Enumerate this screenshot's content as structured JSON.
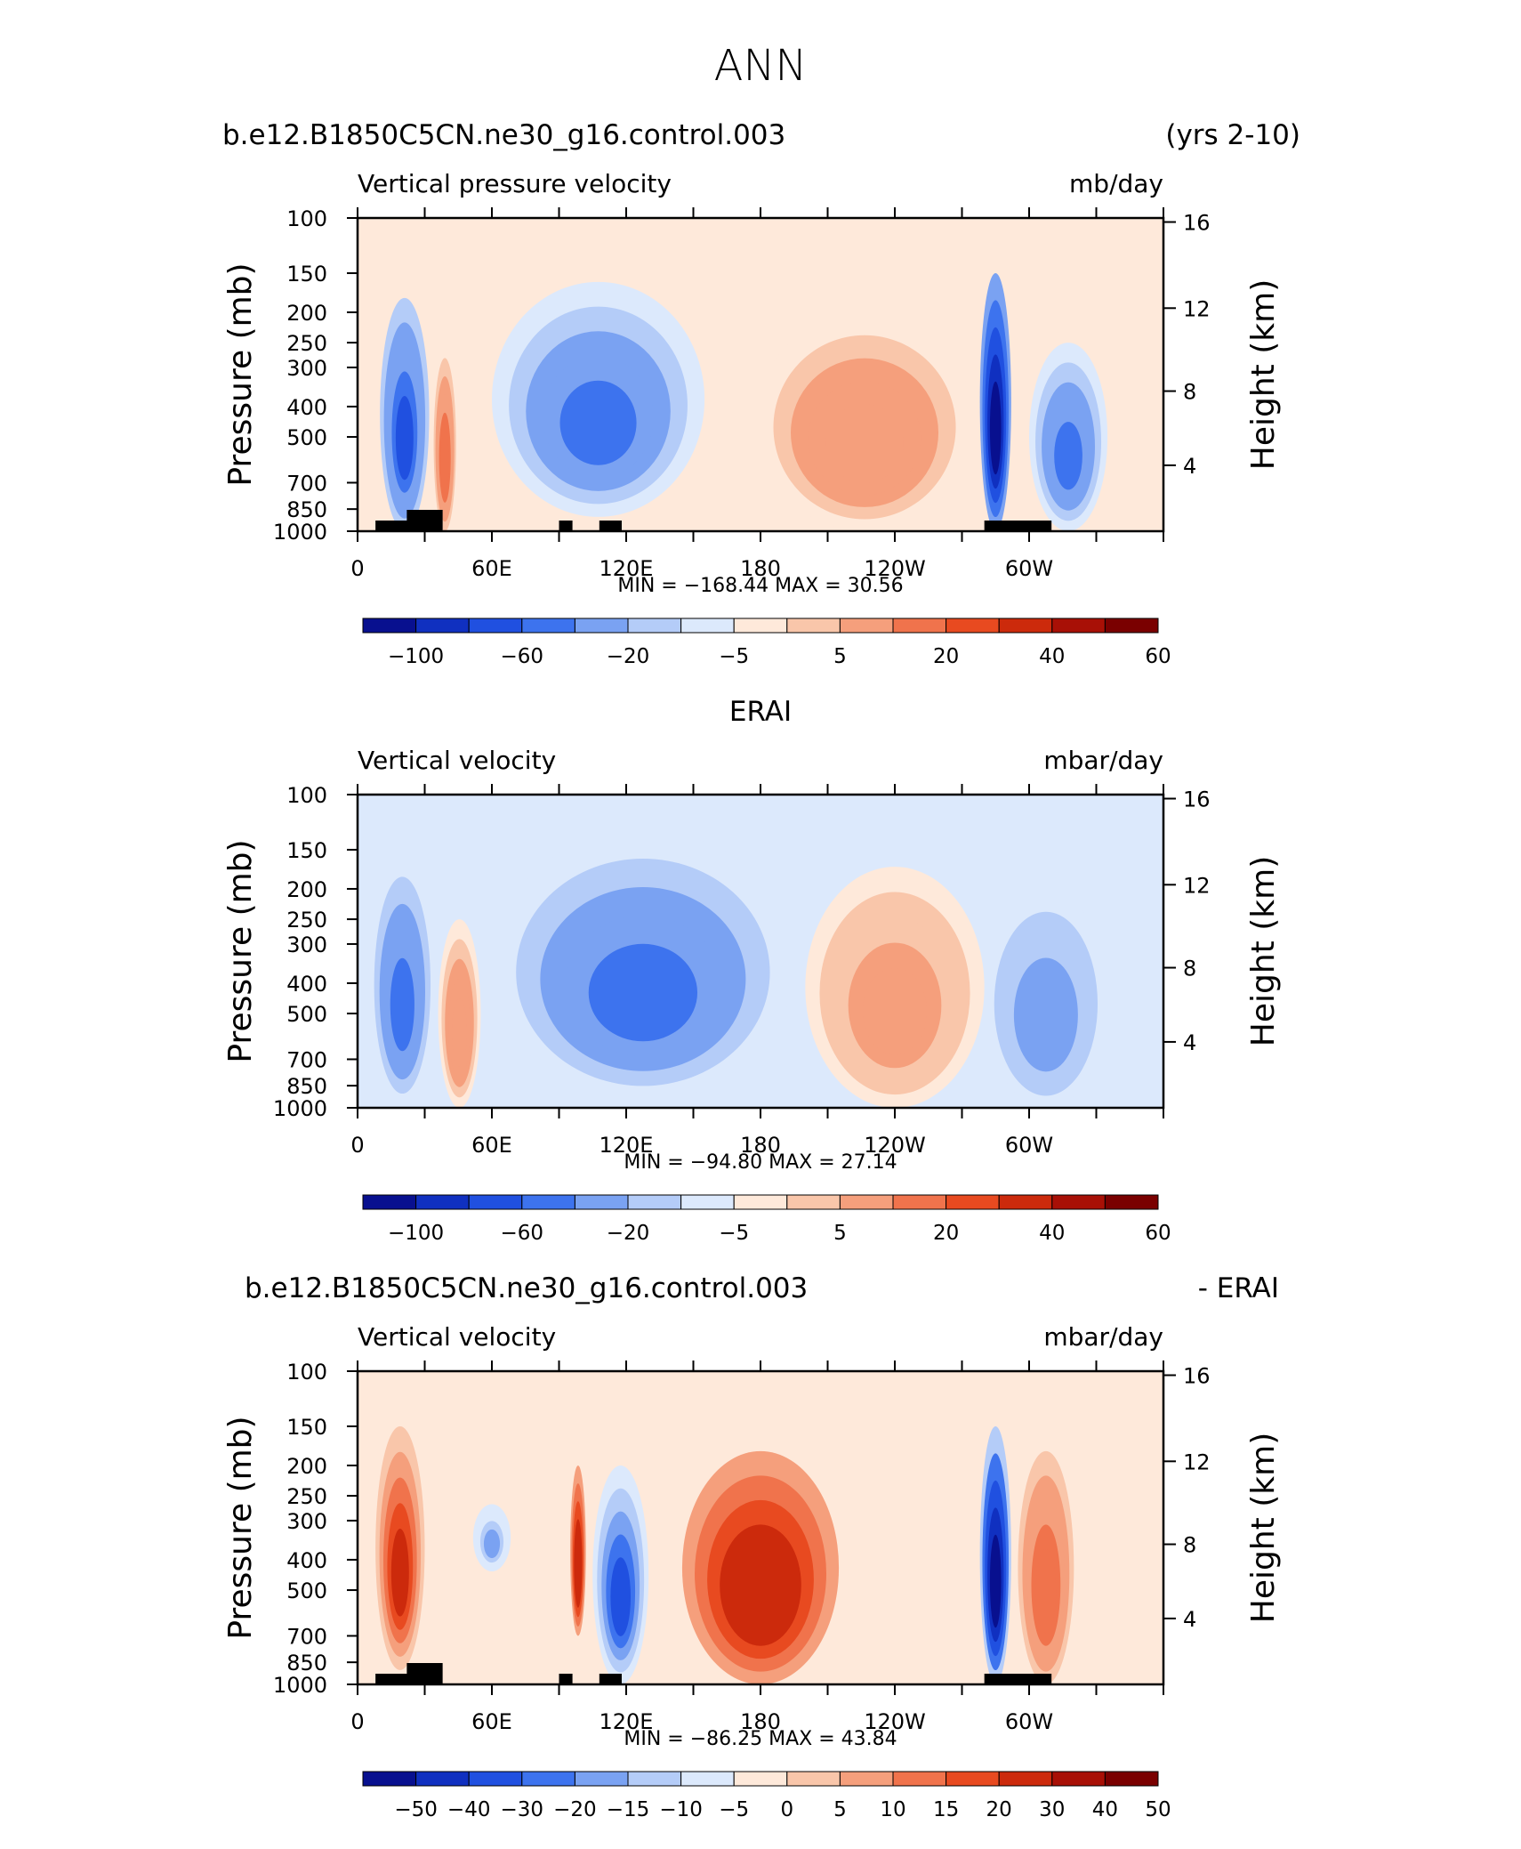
{
  "page_title": "ANN",
  "panels": [
    {
      "id": "model",
      "title_left": "b.e12.B1850C5CN.ne30_g16.control.003",
      "title_center": "",
      "title_right": "(yrs 2-10)",
      "variable": "Vertical pressure velocity",
      "units": "mb/day",
      "minmax": "MIN = −168.44   MAX =   30.56",
      "colorbar_labels": [
        "−100",
        "−60",
        "−20",
        "−5",
        "5",
        "20",
        "40",
        "60"
      ],
      "topo_bars": [
        [
          8,
          30
        ],
        [
          22,
          38
        ],
        [
          90,
          96
        ],
        [
          108,
          118
        ],
        [
          280,
          310
        ]
      ]
    },
    {
      "id": "obs",
      "title_left": "",
      "title_center": "ERAI",
      "title_right": "",
      "variable": "Vertical velocity",
      "units": "mbar/day",
      "minmax": "MIN = −94.80   MAX =   27.14",
      "colorbar_labels": [
        "−100",
        "−60",
        "−20",
        "−5",
        "5",
        "20",
        "40",
        "60"
      ],
      "topo_bars": []
    },
    {
      "id": "diff",
      "title_left": "b.e12.B1850C5CN.ne30_g16.control.003",
      "title_center": "",
      "title_right": "- ERAI",
      "variable": "Vertical velocity",
      "units": "mbar/day",
      "minmax": "MIN = −86.25   MAX =   43.84",
      "colorbar_labels": [
        "−50",
        "−40",
        "−30",
        "−20",
        "−15",
        "−10",
        "−5",
        "0",
        "5",
        "10",
        "15",
        "20",
        "30",
        "40",
        "50"
      ],
      "topo_bars": [
        [
          8,
          30
        ],
        [
          22,
          38
        ],
        [
          90,
          96
        ],
        [
          108,
          118
        ],
        [
          280,
          310
        ]
      ]
    }
  ],
  "axes": {
    "y_left_label": "Pressure (mb)",
    "y_right_label": "Height (km)",
    "y_left_ticks": [
      "100",
      "150",
      "200",
      "250",
      "300",
      "400",
      "500",
      "700",
      "850",
      "1000"
    ],
    "y_right_ticks": [
      "16",
      "12",
      "8",
      "4"
    ],
    "x_ticks": [
      "0",
      "60E",
      "120E",
      "180",
      "120W",
      "60W"
    ]
  },
  "colors": {
    "palette_main": [
      "#08108f",
      "#1030c0",
      "#2050e0",
      "#3d73ee",
      "#7aa2f2",
      "#b4ccf8",
      "#dce9fc",
      "#fee9da",
      "#f9c6aa",
      "#f59f7c",
      "#f0734c",
      "#e84a20",
      "#cc2a0c",
      "#a81006",
      "#7a0000"
    ],
    "palette_diff": [
      "#08108f",
      "#1030c0",
      "#2050e0",
      "#3d73ee",
      "#7aa2f2",
      "#b4ccf8",
      "#dce9fc",
      "#fee9da",
      "#f9c6aa",
      "#f59f7c",
      "#f0734c",
      "#e84a20",
      "#cc2a0c",
      "#a81006",
      "#7a0000"
    ],
    "topo": "#000000"
  },
  "chart_data": [
    {
      "type": "heatmap",
      "title": "b.e12.B1850C5CN.ne30_g16.control.003 (yrs 2-10)",
      "subtitle": "Vertical pressure velocity",
      "units": "mb/day",
      "x_range_deg": [
        0,
        360
      ],
      "x_ticks": [
        "0",
        "60E",
        "120E",
        "180",
        "120W",
        "60W"
      ],
      "y_pressure_mb": [
        100,
        150,
        200,
        250,
        300,
        400,
        500,
        700,
        850,
        1000
      ],
      "y_height_km": [
        16,
        12,
        8,
        4
      ],
      "min": -168.44,
      "max": 30.56,
      "contour_levels": [
        -100,
        -80,
        -60,
        -40,
        -20,
        -10,
        -5,
        5,
        10,
        20,
        30,
        40,
        50,
        60
      ],
      "features": [
        {
          "lon": [
            10,
            32
          ],
          "p": [
            180,
            1000
          ],
          "value": -60
        },
        {
          "lon": [
            34,
            44
          ],
          "p": [
            280,
            1000
          ],
          "value": 30
        },
        {
          "lon": [
            60,
            155
          ],
          "p": [
            160,
            900
          ],
          "value": -40
        },
        {
          "lon": [
            178,
            275
          ],
          "p": [
            200,
            1000
          ],
          "value": 20
        },
        {
          "lon": [
            278,
            292
          ],
          "p": [
            150,
            1000
          ],
          "value": -120
        },
        {
          "lon": [
            300,
            335
          ],
          "p": [
            250,
            1000
          ],
          "value": -40
        }
      ]
    },
    {
      "type": "heatmap",
      "title": "ERAI",
      "subtitle": "Vertical velocity",
      "units": "mbar/day",
      "x_range_deg": [
        0,
        360
      ],
      "x_ticks": [
        "0",
        "60E",
        "120E",
        "180",
        "120W",
        "60W"
      ],
      "y_pressure_mb": [
        100,
        150,
        200,
        250,
        300,
        400,
        500,
        700,
        850,
        1000
      ],
      "y_height_km": [
        16,
        12,
        8,
        4
      ],
      "min": -94.8,
      "max": 27.14,
      "contour_levels": [
        -100,
        -80,
        -60,
        -40,
        -20,
        -10,
        -5,
        5,
        10,
        20,
        30,
        40,
        50,
        60
      ],
      "features": [
        {
          "lon": [
            5,
            35
          ],
          "p": [
            150,
            1000
          ],
          "value": -40
        },
        {
          "lon": [
            36,
            55
          ],
          "p": [
            250,
            1000
          ],
          "value": 20
        },
        {
          "lon": [
            60,
            195
          ],
          "p": [
            130,
            950
          ],
          "value": -40
        },
        {
          "lon": [
            200,
            280
          ],
          "p": [
            170,
            1000
          ],
          "value": 15
        },
        {
          "lon": [
            280,
            335
          ],
          "p": [
            200,
            1000
          ],
          "value": -30
        }
      ]
    },
    {
      "type": "heatmap",
      "title": "b.e12.B1850C5CN.ne30_g16.control.003 - ERAI",
      "subtitle": "Vertical velocity",
      "units": "mbar/day",
      "x_range_deg": [
        0,
        360
      ],
      "x_ticks": [
        "0",
        "60E",
        "120E",
        "180",
        "120W",
        "60W"
      ],
      "y_pressure_mb": [
        100,
        150,
        200,
        250,
        300,
        400,
        500,
        700,
        850,
        1000
      ],
      "y_height_km": [
        16,
        12,
        8,
        4
      ],
      "min": -86.25,
      "max": 43.84,
      "contour_levels": [
        -50,
        -40,
        -30,
        -20,
        -15,
        -10,
        -5,
        0,
        5,
        10,
        15,
        20,
        30,
        40,
        50
      ],
      "features": [
        {
          "lon": [
            8,
            30
          ],
          "p": [
            150,
            900
          ],
          "value": 25
        },
        {
          "lon": [
            50,
            70
          ],
          "p": [
            250,
            450
          ],
          "value": -15
        },
        {
          "lon": [
            95,
            102
          ],
          "p": [
            200,
            700
          ],
          "value": 30
        },
        {
          "lon": [
            105,
            130
          ],
          "p": [
            200,
            1000
          ],
          "value": -30
        },
        {
          "lon": [
            145,
            215
          ],
          "p": [
            180,
            1000
          ],
          "value": 30
        },
        {
          "lon": [
            278,
            292
          ],
          "p": [
            150,
            1000
          ],
          "value": -50
        },
        {
          "lon": [
            295,
            320
          ],
          "p": [
            180,
            1000
          ],
          "value": 15
        }
      ]
    }
  ]
}
